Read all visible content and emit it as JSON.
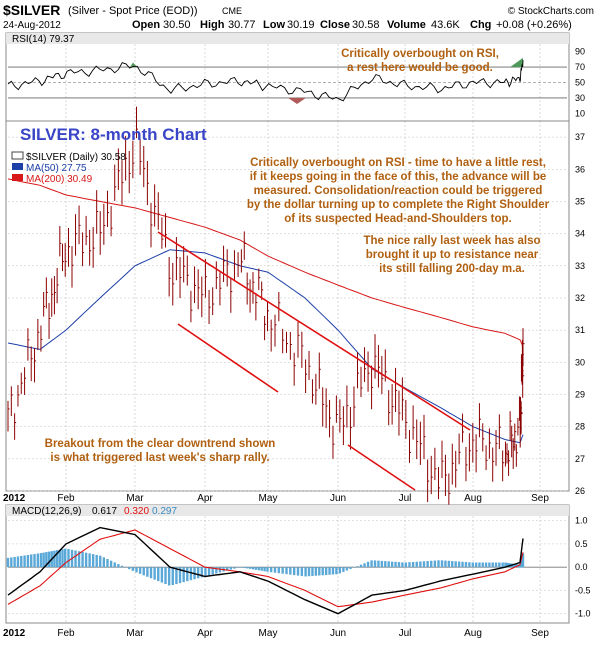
{
  "header": {
    "symbol": "$SILVER",
    "description": "(Silver - Spot Price (EOD))",
    "exchange": "CME",
    "date": "24-Aug-2012",
    "open_label": "Open",
    "open": "30.50",
    "high_label": "High",
    "high": "30.77",
    "low_label": "Low",
    "low": "30.19",
    "close_label": "Close",
    "close": "30.58",
    "volume_label": "Volume",
    "volume": "43.6K",
    "chg_label": "Chg",
    "chg": "+0.08 (+0.26%)",
    "watermark": "© StockCharts.com",
    "copyright_icon": "copyright-icon"
  },
  "colors": {
    "price": "#8b0000",
    "ma50": "#1c3fa8",
    "ma200": "#d81818",
    "trend": "#e01010",
    "annotation": "#b06010",
    "title": "#3a45c8",
    "rsi_line": "#000000",
    "rsi_overbought": "#4f9a5a",
    "rsi_oversold": "#b05a5a",
    "macd_line": "#000000",
    "macd_signal": "#e01010",
    "macd_hist": "#5aa8d8",
    "panel_header": "#e8e8e8",
    "grid": "#c0c0c0"
  },
  "rsi_panel": {
    "label": "RSI(14) 79.37",
    "ticks": [
      90,
      70,
      50,
      30,
      10
    ],
    "annotation": [
      "Critically overbought on RSI,",
      "a rest here would be good."
    ]
  },
  "price_panel": {
    "title": "SILVER: 8-month Chart",
    "legend": [
      {
        "label": "$SILVER (Daily) 30.58",
        "color": "#8b0000"
      },
      {
        "label": "MA(50) 27.75",
        "color": "#1c3fa8"
      },
      {
        "label": "MA(200) 30.49",
        "color": "#d81818"
      }
    ],
    "annotation_main": [
      "Critically overbought on RSI - time to have a little rest,",
      "if it keeps going in the face of this, the advance will be",
      "measured. Consolidation/reaction could be triggered",
      "by the dollar turning up to complete the Right Shoulder",
      "of its suspected Head-and-Shoulders top."
    ],
    "annotation_resistance": [
      "The nice rally last week has also",
      "brought it up to resistance near",
      "its still falling 200-day m.a."
    ],
    "annotation_breakout": [
      "Breakout from the clear downtrend shown",
      "is what triggered last week's sharp rally."
    ]
  },
  "macd_panel": {
    "label_prefix": "MACD(12,26,9)",
    "macd_value": "0.617",
    "signal_value": "0.320",
    "hist_value": "0.297",
    "ticks": [
      "1.0",
      "0.5",
      "0.0",
      "-0.5",
      "-1.0"
    ]
  },
  "x_axis": {
    "year": "2012",
    "months": [
      "Feb",
      "Mar",
      "Apr",
      "May",
      "Jun",
      "Jul",
      "Aug",
      "Sep"
    ]
  },
  "chart_data": [
    {
      "type": "line",
      "name": "RSI(14)",
      "ylim": [
        0,
        100
      ],
      "x": [
        "Jan 2",
        "Jan 16",
        "Jan 31",
        "Feb 14",
        "Feb 28",
        "Mar 13",
        "Mar 27",
        "Apr 10",
        "Apr 24",
        "May 8",
        "May 22",
        "Jun 5",
        "Jun 19",
        "Jul 3",
        "Jul 17",
        "Jul 31",
        "Aug 14",
        "Aug 24"
      ],
      "values": [
        45,
        52,
        62,
        66,
        72,
        40,
        48,
        52,
        45,
        38,
        28,
        56,
        46,
        42,
        50,
        50,
        55,
        79
      ],
      "reference_lines": [
        70,
        50,
        30
      ],
      "ticks": [
        90,
        70,
        50,
        30,
        10
      ]
    },
    {
      "type": "line",
      "title": "SILVER: 8-month Chart",
      "ylim": [
        26,
        37.5
      ],
      "x": [
        "Jan 2",
        "Jan 16",
        "Jan 31",
        "Feb 14",
        "Feb 28",
        "Mar 13",
        "Mar 27",
        "Apr 10",
        "Apr 24",
        "May 8",
        "May 22",
        "Jun 5",
        "Jun 19",
        "Jul 3",
        "Jul 17",
        "Jul 31",
        "Aug 14",
        "Aug 24"
      ],
      "ticks": [
        37,
        36,
        35,
        34,
        33,
        32,
        31,
        30,
        29,
        28,
        27,
        26
      ],
      "series": [
        {
          "name": "$SILVER (Daily)",
          "values": [
            28.2,
            31.0,
            33.5,
            34.0,
            36.8,
            33.0,
            32.0,
            33.2,
            31.5,
            30.0,
            27.8,
            30.0,
            28.2,
            26.2,
            27.6,
            27.2,
            28.0,
            30.58
          ]
        },
        {
          "name": "MA(50)",
          "values": [
            30.6,
            30.4,
            31.0,
            32.0,
            33.0,
            33.5,
            33.4,
            33.0,
            32.8,
            32.0,
            31.0,
            29.8,
            29.2,
            28.6,
            28.0,
            27.6,
            27.5,
            27.75
          ]
        },
        {
          "name": "MA(200)",
          "values": [
            35.7,
            35.5,
            35.2,
            35.0,
            34.8,
            34.5,
            34.2,
            33.8,
            33.3,
            32.8,
            32.4,
            32.0,
            31.7,
            31.4,
            31.1,
            30.9,
            30.7,
            30.49
          ]
        }
      ]
    },
    {
      "type": "line",
      "name": "MACD(12,26,9)",
      "ylim": [
        -1.2,
        1.1
      ],
      "x": [
        "Jan 2",
        "Jan 16",
        "Jan 31",
        "Feb 14",
        "Feb 28",
        "Mar 13",
        "Mar 27",
        "Apr 10",
        "Apr 24",
        "May 8",
        "May 22",
        "Jun 5",
        "Jun 19",
        "Jul 3",
        "Jul 17",
        "Jul 31",
        "Aug 14",
        "Aug 24"
      ],
      "series": [
        {
          "name": "MACD",
          "values": [
            -0.6,
            -0.1,
            0.5,
            0.85,
            0.7,
            0.0,
            -0.2,
            -0.1,
            -0.3,
            -0.7,
            -1.0,
            -0.6,
            -0.5,
            -0.3,
            -0.15,
            0.0,
            0.1,
            0.617
          ]
        },
        {
          "name": "Signal",
          "values": [
            -0.8,
            -0.4,
            0.1,
            0.6,
            0.8,
            0.4,
            0.0,
            -0.1,
            -0.2,
            -0.5,
            -0.85,
            -0.75,
            -0.6,
            -0.45,
            -0.25,
            -0.1,
            0.05,
            0.32
          ]
        },
        {
          "name": "Histogram",
          "values": [
            0.2,
            0.3,
            0.4,
            0.25,
            -0.1,
            -0.4,
            -0.2,
            0.0,
            -0.1,
            -0.2,
            -0.15,
            0.15,
            0.1,
            0.15,
            0.1,
            0.1,
            0.05,
            0.297
          ]
        }
      ],
      "ticks": [
        1.0,
        0.5,
        0.0,
        -0.5,
        -1.0
      ]
    }
  ]
}
